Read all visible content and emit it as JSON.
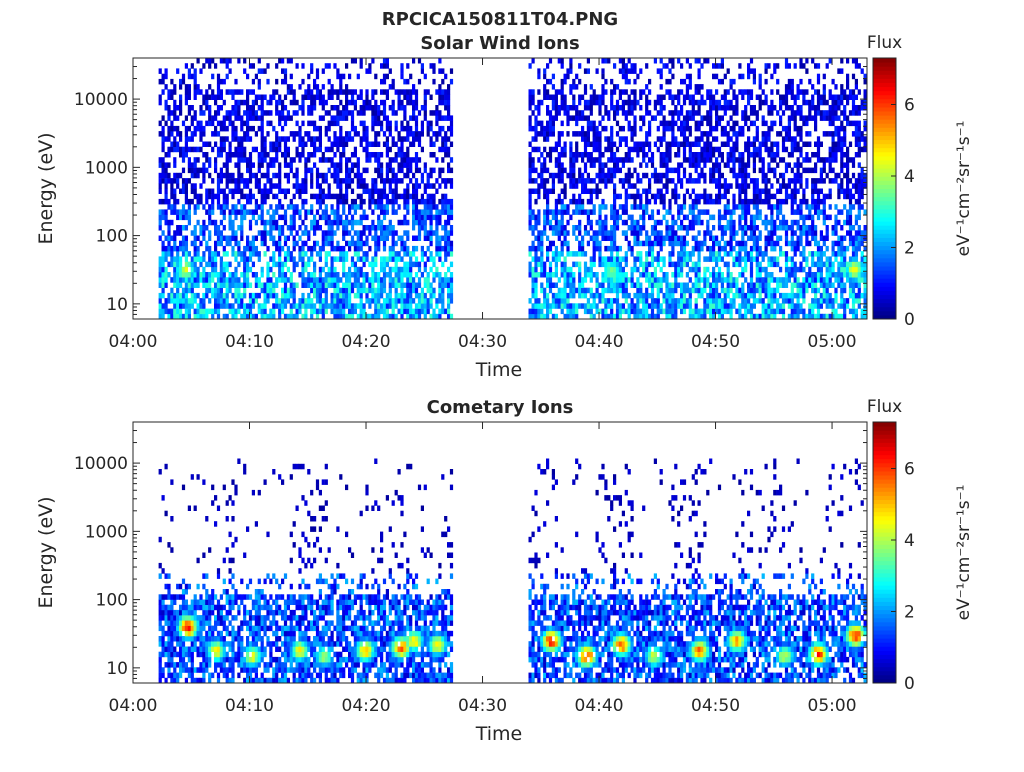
{
  "figure": {
    "title": "RPCICA150811T04.PNG"
  },
  "chart_data": [
    {
      "type": "heatmap",
      "title": "Solar Wind Ions",
      "xlabel": "Time",
      "ylabel": "Energy (eV)",
      "x_ticks": [
        "04:00",
        "04:10",
        "04:20",
        "04:30",
        "04:40",
        "04:50",
        "05:00"
      ],
      "x_range_min": [
        0,
        63
      ],
      "y_scale": "log",
      "y_ticks": [
        "10",
        "100",
        "1000",
        "10000"
      ],
      "y_range_eV": [
        6,
        40000
      ],
      "colorbar": {
        "label": "Flux",
        "unit": "eV⁻¹cm⁻²sr⁻¹s⁻¹",
        "ticks": [
          "0",
          "2",
          "4",
          "6"
        ],
        "range": [
          0,
          7.3
        ],
        "colormap": "jet"
      },
      "data_gap_min": [
        27.3,
        33.9
      ],
      "sparse_column_min": [
        27.3,
        30.6
      ],
      "profile": "broad sparse low-flux noise at all energies up to ~40 keV, mostly flux 0-3; weak 4-5 patches near 30 eV",
      "hot_spots": [
        {
          "time_min": 4.4,
          "energy_eV": 32,
          "flux": 4.5
        },
        {
          "time_min": 61.8,
          "energy_eV": 32,
          "flux": 4.8
        },
        {
          "time_min": 41.0,
          "energy_eV": 30,
          "flux": 4.0
        }
      ]
    },
    {
      "type": "heatmap",
      "title": "Cometary Ions",
      "xlabel": "Time",
      "ylabel": "Energy (eV)",
      "x_ticks": [
        "04:00",
        "04:10",
        "04:20",
        "04:30",
        "04:40",
        "04:50",
        "05:00"
      ],
      "x_range_min": [
        0,
        63
      ],
      "y_scale": "log",
      "y_ticks": [
        "10",
        "100",
        "1000",
        "10000"
      ],
      "y_range_eV": [
        6,
        40000
      ],
      "colorbar": {
        "label": "Flux",
        "unit": "eV⁻¹cm⁻²sr⁻¹s⁻¹",
        "ticks": [
          "0",
          "2",
          "4",
          "6"
        ],
        "range": [
          0,
          7.3
        ],
        "colormap": "jet"
      },
      "data_gap_min": [
        27.3,
        33.9
      ],
      "sparse_column_min": [
        27.3,
        30.6
      ],
      "profile": "dense flux below ~120 eV with periodic bursts; sparse low counts 300 eV-10 keV in vertical streaks",
      "hot_spots": [
        {
          "time_min": 4.6,
          "energy_eV": 40,
          "flux": 6.8
        },
        {
          "time_min": 7.0,
          "energy_eV": 18,
          "flux": 5.0
        },
        {
          "time_min": 10.1,
          "energy_eV": 15,
          "flux": 4.8
        },
        {
          "time_min": 14.2,
          "energy_eV": 18,
          "flux": 4.8
        },
        {
          "time_min": 16.3,
          "energy_eV": 15,
          "flux": 4.2
        },
        {
          "time_min": 19.8,
          "energy_eV": 18,
          "flux": 5.5
        },
        {
          "time_min": 22.9,
          "energy_eV": 20,
          "flux": 6.2
        },
        {
          "time_min": 24.0,
          "energy_eV": 25,
          "flux": 5.2
        },
        {
          "time_min": 26.0,
          "energy_eV": 22,
          "flux": 5.0
        },
        {
          "time_min": 35.8,
          "energy_eV": 25,
          "flux": 6.8
        },
        {
          "time_min": 38.8,
          "energy_eV": 15,
          "flux": 6.6
        },
        {
          "time_min": 41.8,
          "energy_eV": 22,
          "flux": 6.3
        },
        {
          "time_min": 44.6,
          "energy_eV": 15,
          "flux": 4.6
        },
        {
          "time_min": 48.5,
          "energy_eV": 18,
          "flux": 6.0
        },
        {
          "time_min": 51.7,
          "energy_eV": 25,
          "flux": 5.6
        },
        {
          "time_min": 55.8,
          "energy_eV": 15,
          "flux": 4.5
        },
        {
          "time_min": 58.7,
          "energy_eV": 16,
          "flux": 6.5
        },
        {
          "time_min": 61.9,
          "energy_eV": 30,
          "flux": 6.8
        }
      ]
    }
  ]
}
